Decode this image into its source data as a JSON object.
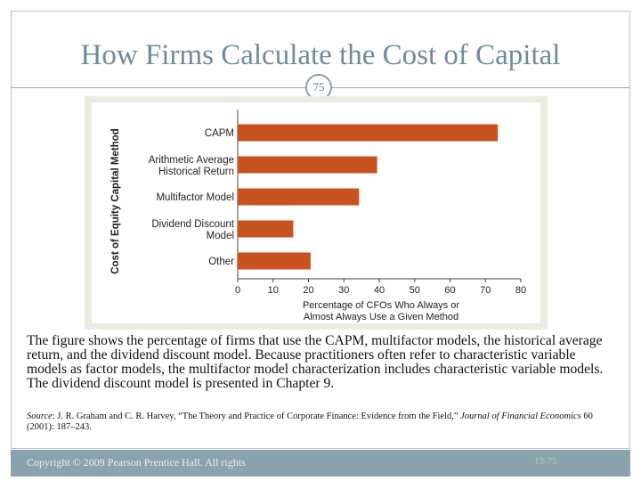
{
  "slide": {
    "title": "How Firms Calculate the Cost of Capital",
    "page_number": "75",
    "body": "The figure shows the percentage of firms that use the CAPM, multifactor models, the historical average return, and the dividend discount model. Because practitioners often refer to characteristic variable models as factor models, the multifactor model characterization includes characteristic variable models. The dividend discount model is presented in Chapter 9.",
    "source_label": "Source",
    "source_text": ": J. R. Graham and C. R. Harvey, “The Theory and Practice of Corporate Finance: Evidence from the Field,” ",
    "source_journal": "Journal of Financial Economics",
    "source_tail": " 60 (2001): 187–243.",
    "footer_left": "Copyright © 2009 Pearson Prentice Hall. All rights",
    "footer_right": "13-75"
  },
  "chart_data": {
    "type": "bar",
    "orientation": "horizontal",
    "categories": [
      [
        "CAPM"
      ],
      [
        "Arithmetic Average",
        "Historical Return"
      ],
      [
        "Multifactor Model"
      ],
      [
        "Dividend Discount",
        "Model"
      ],
      [
        "Other"
      ]
    ],
    "values": [
      73.5,
      39.4,
      34.3,
      15.7,
      20.6
    ],
    "ylabel": "Cost of Equity Capital Method",
    "xlabel": [
      "Percentage of CFOs Who Always or",
      "Almost Always Use a Given Method"
    ],
    "xlim": [
      0,
      80
    ],
    "xticks": [
      0,
      10,
      20,
      30,
      40,
      50,
      60,
      70,
      80
    ],
    "bar_color": "#c8531f",
    "grid": false
  }
}
